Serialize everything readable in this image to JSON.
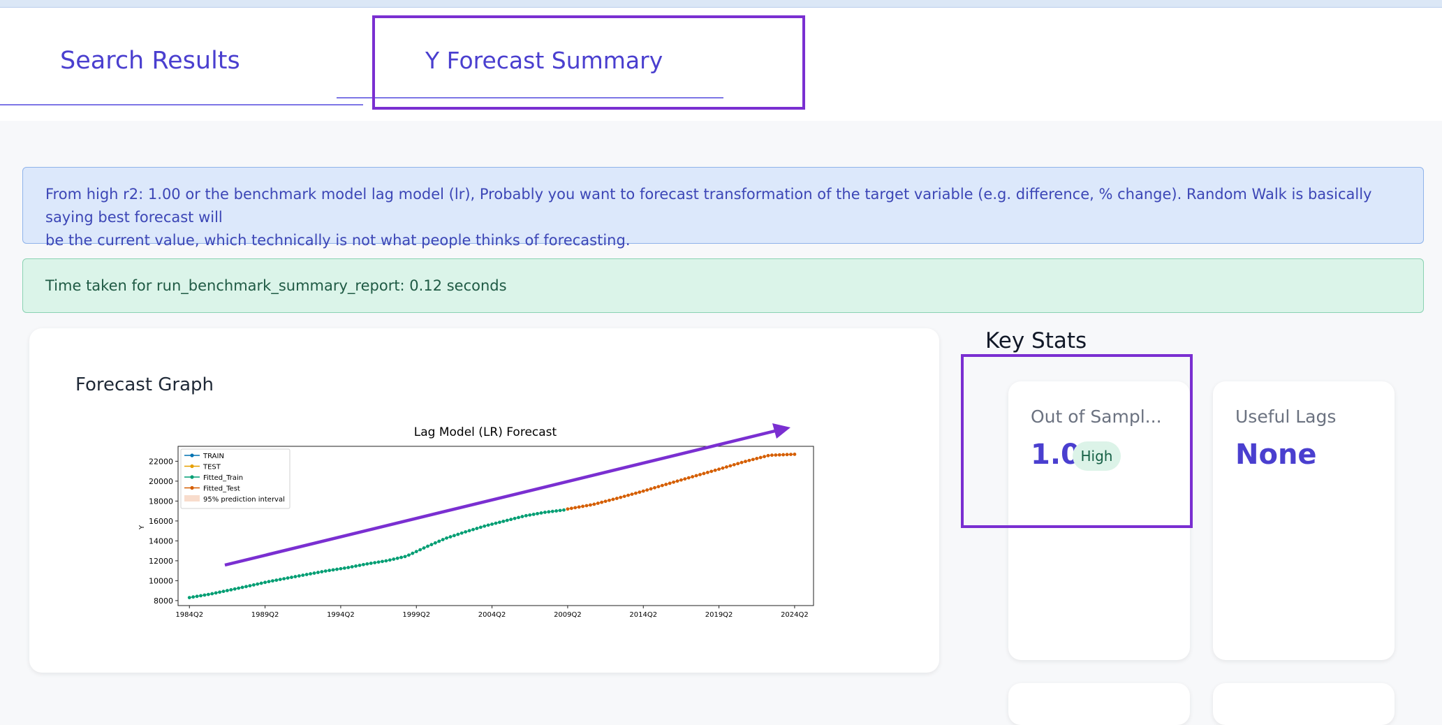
{
  "tabs": [
    {
      "label": "Search Results"
    },
    {
      "label": "Y Forecast Summary"
    }
  ],
  "alerts": {
    "info_line1": "From high r2: 1.00 or the benchmark model lag model (lr), Probably you want to forecast transformation of the target variable (e.g. difference, % change). Random Walk is basically saying best forecast will",
    "info_line2": "be the current value, which technically is not what people thinks of forecasting.",
    "success": "Time taken for run_benchmark_summary_report: 0.12 seconds"
  },
  "graph_card": {
    "title": "Forecast Graph"
  },
  "key_stats": {
    "title": "Key Stats",
    "cards": [
      {
        "label": "Out of Sampl...",
        "value": "1.0",
        "badge": "High"
      },
      {
        "label": "Useful Lags",
        "value": "None"
      }
    ]
  },
  "colors": {
    "accent": "#4a3fcf",
    "annotation": "#7a2fd1",
    "train": "#0072b2",
    "test": "#e69f00",
    "fitted_train": "#009e73",
    "fitted_test": "#d55e00"
  },
  "chart_data": {
    "type": "line",
    "title": "Lag Model (LR) Forecast",
    "xlabel": "",
    "ylabel": "Y",
    "x_ticks": [
      "1984Q2",
      "1989Q2",
      "1994Q2",
      "1999Q2",
      "2004Q2",
      "2009Q2",
      "2014Q2",
      "2019Q2",
      "2024Q2"
    ],
    "y_ticks": [
      8000,
      10000,
      12000,
      14000,
      16000,
      18000,
      20000,
      22000
    ],
    "ylim": [
      7500,
      23500
    ],
    "x_range": [
      "1983Q3",
      "2025Q3"
    ],
    "legend_position": "upper-left",
    "legend": [
      "TRAIN",
      "TEST",
      "Fitted_Train",
      "Fitted_Test",
      "95% prediction interval"
    ],
    "series": [
      {
        "name": "Fitted_Train",
        "color": "#009e73",
        "x_start": "1984Q2",
        "x_end": "2009Q1",
        "values": [
          8300,
          8630,
          9040,
          9460,
          9900,
          10270,
          10640,
          11000,
          11300,
          11680,
          12000,
          12450,
          13380,
          14250,
          14900,
          15500,
          16000,
          16500,
          16860,
          17100
        ]
      },
      {
        "name": "Fitted_Test",
        "color": "#d55e00",
        "x_start": "2009Q2",
        "x_end": "2024Q2",
        "values": [
          17200,
          17650,
          18300,
          19000,
          19750,
          20480,
          21200,
          21950,
          22600,
          22700
        ]
      }
    ]
  }
}
